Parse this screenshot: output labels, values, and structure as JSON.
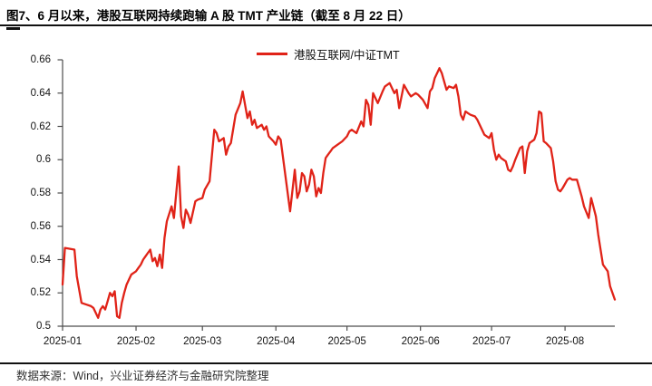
{
  "figure": {
    "title": "图7、6 月以来，港股互联网持续跑输 A 股 TMT 产业链（截至 8 月 22 日）",
    "source_note": "数据来源：Wind，兴业证券经济与金融研究院整理"
  },
  "legend": {
    "series_label": "港股互联网/中证TMT"
  },
  "colors": {
    "line": "#e02318",
    "axis": "#4d4d4d",
    "text": "#141414",
    "divider": "#111111"
  },
  "chart_data": {
    "type": "line",
    "title": "港股互联网/中证TMT",
    "xlabel": "",
    "ylabel": "",
    "grid": false,
    "legend_position": "top-center",
    "ylim": [
      0.5,
      0.66
    ],
    "ytick_step": 0.02,
    "yticks": [
      "0.5",
      "0.52",
      "0.54",
      "0.56",
      "0.58",
      "0.6",
      "0.62",
      "0.64",
      "0.66"
    ],
    "xticks": [
      "2025-01",
      "2025-02",
      "2025-03",
      "2025-04",
      "2025-05",
      "2025-06",
      "2025-07",
      "2025-08"
    ],
    "x_range": [
      "2025-01-01",
      "2025-08-22"
    ],
    "series": [
      {
        "name": "港股互联网/中证TMT",
        "color": "#e02318",
        "points": [
          [
            "2025-01-01",
            0.525
          ],
          [
            "2025-01-02",
            0.547
          ],
          [
            "2025-01-06",
            0.546
          ],
          [
            "2025-01-07",
            0.53
          ],
          [
            "2025-01-09",
            0.514
          ],
          [
            "2025-01-11",
            0.513
          ],
          [
            "2025-01-13",
            0.512
          ],
          [
            "2025-01-14",
            0.511
          ],
          [
            "2025-01-15",
            0.508
          ],
          [
            "2025-01-16",
            0.505
          ],
          [
            "2025-01-17",
            0.51
          ],
          [
            "2025-01-18",
            0.512
          ],
          [
            "2025-01-19",
            0.51
          ],
          [
            "2025-01-20",
            0.515
          ],
          [
            "2025-01-21",
            0.52
          ],
          [
            "2025-01-22",
            0.518
          ],
          [
            "2025-01-23",
            0.521
          ],
          [
            "2025-01-24",
            0.506
          ],
          [
            "2025-01-25",
            0.505
          ],
          [
            "2025-01-26",
            0.514
          ],
          [
            "2025-01-27",
            0.52
          ],
          [
            "2025-01-28",
            0.525
          ],
          [
            "2025-01-29",
            0.528
          ],
          [
            "2025-01-30",
            0.531
          ],
          [
            "2025-01-31",
            0.532
          ],
          [
            "2025-02-01",
            0.533
          ],
          [
            "2025-02-02",
            0.535
          ],
          [
            "2025-02-03",
            0.537
          ],
          [
            "2025-02-04",
            0.54
          ],
          [
            "2025-02-05",
            0.542
          ],
          [
            "2025-02-06",
            0.544
          ],
          [
            "2025-02-07",
            0.546
          ],
          [
            "2025-02-08",
            0.539
          ],
          [
            "2025-02-09",
            0.541
          ],
          [
            "2025-02-10",
            0.536
          ],
          [
            "2025-02-11",
            0.543
          ],
          [
            "2025-02-12",
            0.535
          ],
          [
            "2025-02-13",
            0.553
          ],
          [
            "2025-02-14",
            0.563
          ],
          [
            "2025-02-16",
            0.572
          ],
          [
            "2025-02-17",
            0.565
          ],
          [
            "2025-02-19",
            0.596
          ],
          [
            "2025-02-20",
            0.566
          ],
          [
            "2025-02-21",
            0.559
          ],
          [
            "2025-02-22",
            0.57
          ],
          [
            "2025-02-23",
            0.567
          ],
          [
            "2025-02-24",
            0.562
          ],
          [
            "2025-02-26",
            0.575
          ],
          [
            "2025-02-27",
            0.576
          ],
          [
            "2025-03-01",
            0.577
          ],
          [
            "2025-03-02",
            0.582
          ],
          [
            "2025-03-04",
            0.587
          ],
          [
            "2025-03-06",
            0.618
          ],
          [
            "2025-03-07",
            0.616
          ],
          [
            "2025-03-08",
            0.611
          ],
          [
            "2025-03-10",
            0.613
          ],
          [
            "2025-03-11",
            0.603
          ],
          [
            "2025-03-12",
            0.608
          ],
          [
            "2025-03-13",
            0.61
          ],
          [
            "2025-03-15",
            0.627
          ],
          [
            "2025-03-17",
            0.634
          ],
          [
            "2025-03-18",
            0.641
          ],
          [
            "2025-03-20",
            0.625
          ],
          [
            "2025-03-21",
            0.629
          ],
          [
            "2025-03-22",
            0.621
          ],
          [
            "2025-03-23",
            0.624
          ],
          [
            "2025-03-24",
            0.619
          ],
          [
            "2025-03-26",
            0.621
          ],
          [
            "2025-03-27",
            0.618
          ],
          [
            "2025-03-28",
            0.62
          ],
          [
            "2025-03-29",
            0.614
          ],
          [
            "2025-03-31",
            0.611
          ],
          [
            "2025-04-01",
            0.609
          ],
          [
            "2025-04-02",
            0.614
          ],
          [
            "2025-04-03",
            0.612
          ],
          [
            "2025-04-07",
            0.569
          ],
          [
            "2025-04-09",
            0.594
          ],
          [
            "2025-04-10",
            0.577
          ],
          [
            "2025-04-11",
            0.581
          ],
          [
            "2025-04-12",
            0.592
          ],
          [
            "2025-04-13",
            0.59
          ],
          [
            "2025-04-14",
            0.581
          ],
          [
            "2025-04-15",
            0.585
          ],
          [
            "2025-04-16",
            0.594
          ],
          [
            "2025-04-17",
            0.59
          ],
          [
            "2025-04-18",
            0.578
          ],
          [
            "2025-04-19",
            0.583
          ],
          [
            "2025-04-20",
            0.58
          ],
          [
            "2025-04-21",
            0.592
          ],
          [
            "2025-04-22",
            0.601
          ],
          [
            "2025-04-23",
            0.603
          ],
          [
            "2025-04-24",
            0.605
          ],
          [
            "2025-04-25",
            0.607
          ],
          [
            "2025-04-27",
            0.609
          ],
          [
            "2025-04-29",
            0.611
          ],
          [
            "2025-05-01",
            0.614
          ],
          [
            "2025-05-02",
            0.617
          ],
          [
            "2025-05-03",
            0.618
          ],
          [
            "2025-05-05",
            0.616
          ],
          [
            "2025-05-07",
            0.623
          ],
          [
            "2025-05-08",
            0.62
          ],
          [
            "2025-05-09",
            0.636
          ],
          [
            "2025-05-10",
            0.633
          ],
          [
            "2025-05-11",
            0.621
          ],
          [
            "2025-05-12",
            0.64
          ],
          [
            "2025-05-14",
            0.634
          ],
          [
            "2025-05-16",
            0.641
          ],
          [
            "2025-05-17",
            0.644
          ],
          [
            "2025-05-19",
            0.646
          ],
          [
            "2025-05-21",
            0.64
          ],
          [
            "2025-05-22",
            0.642
          ],
          [
            "2025-05-23",
            0.631
          ],
          [
            "2025-05-25",
            0.645
          ],
          [
            "2025-05-27",
            0.64
          ],
          [
            "2025-05-28",
            0.638
          ],
          [
            "2025-05-30",
            0.64
          ],
          [
            "2025-05-31",
            0.639
          ],
          [
            "2025-06-02",
            0.636
          ],
          [
            "2025-06-04",
            0.631
          ],
          [
            "2025-06-05",
            0.641
          ],
          [
            "2025-06-06",
            0.643
          ],
          [
            "2025-06-07",
            0.649
          ],
          [
            "2025-06-09",
            0.655
          ],
          [
            "2025-06-10",
            0.652
          ],
          [
            "2025-06-11",
            0.647
          ],
          [
            "2025-06-12",
            0.642
          ],
          [
            "2025-06-13",
            0.644
          ],
          [
            "2025-06-15",
            0.643
          ],
          [
            "2025-06-16",
            0.645
          ],
          [
            "2025-06-17",
            0.638
          ],
          [
            "2025-06-18",
            0.627
          ],
          [
            "2025-06-19",
            0.624
          ],
          [
            "2025-06-20",
            0.629
          ],
          [
            "2025-06-21",
            0.628
          ],
          [
            "2025-06-22",
            0.627
          ],
          [
            "2025-06-24",
            0.626
          ],
          [
            "2025-06-25",
            0.624
          ],
          [
            "2025-06-26",
            0.621
          ],
          [
            "2025-06-27",
            0.618
          ],
          [
            "2025-06-28",
            0.615
          ],
          [
            "2025-06-30",
            0.613
          ],
          [
            "2025-07-01",
            0.616
          ],
          [
            "2025-07-02",
            0.606
          ],
          [
            "2025-07-03",
            0.6
          ],
          [
            "2025-07-04",
            0.603
          ],
          [
            "2025-07-05",
            0.601
          ],
          [
            "2025-07-07",
            0.599
          ],
          [
            "2025-07-08",
            0.594
          ],
          [
            "2025-07-09",
            0.593
          ],
          [
            "2025-07-10",
            0.596
          ],
          [
            "2025-07-11",
            0.6
          ],
          [
            "2025-07-13",
            0.607
          ],
          [
            "2025-07-14",
            0.608
          ],
          [
            "2025-07-15",
            0.592
          ],
          [
            "2025-07-16",
            0.605
          ],
          [
            "2025-07-17",
            0.61
          ],
          [
            "2025-07-18",
            0.611
          ],
          [
            "2025-07-19",
            0.612
          ],
          [
            "2025-07-20",
            0.616
          ],
          [
            "2025-07-21",
            0.629
          ],
          [
            "2025-07-22",
            0.628
          ],
          [
            "2025-07-23",
            0.611
          ],
          [
            "2025-07-24",
            0.61
          ],
          [
            "2025-07-26",
            0.607
          ],
          [
            "2025-07-27",
            0.599
          ],
          [
            "2025-07-28",
            0.587
          ],
          [
            "2025-07-29",
            0.582
          ],
          [
            "2025-07-30",
            0.581
          ],
          [
            "2025-07-31",
            0.583
          ],
          [
            "2025-08-02",
            0.588
          ],
          [
            "2025-08-03",
            0.589
          ],
          [
            "2025-08-04",
            0.588
          ],
          [
            "2025-08-06",
            0.588
          ],
          [
            "2025-08-07",
            0.583
          ],
          [
            "2025-08-08",
            0.578
          ],
          [
            "2025-08-09",
            0.572
          ],
          [
            "2025-08-11",
            0.565
          ],
          [
            "2025-08-12",
            0.577
          ],
          [
            "2025-08-14",
            0.566
          ],
          [
            "2025-08-15",
            0.555
          ],
          [
            "2025-08-16",
            0.546
          ],
          [
            "2025-08-17",
            0.537
          ],
          [
            "2025-08-19",
            0.533
          ],
          [
            "2025-08-20",
            0.524
          ],
          [
            "2025-08-22",
            0.516
          ]
        ]
      }
    ]
  }
}
